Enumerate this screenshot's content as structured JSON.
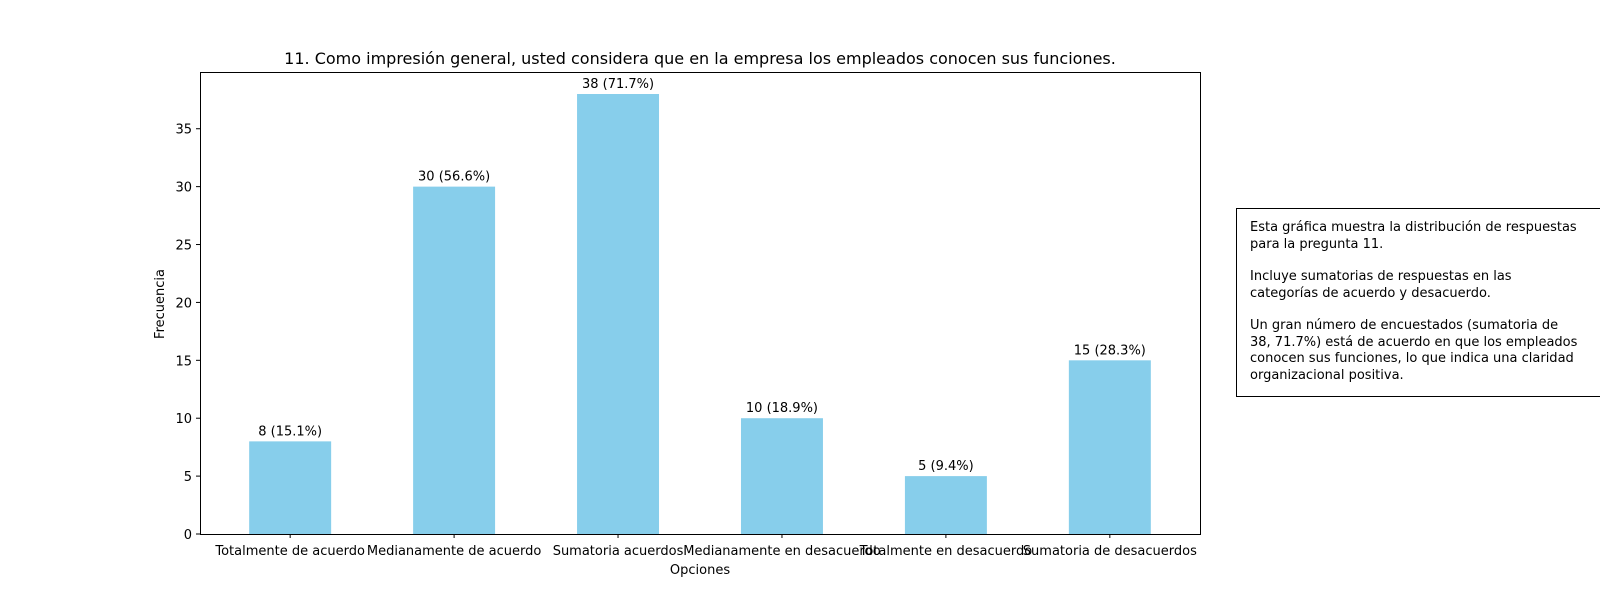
{
  "chart_data": {
    "type": "bar",
    "title": "11. Como impresión general, usted considera que en la empresa los empleados conocen sus funciones.",
    "xlabel": "Opciones",
    "ylabel": "Frecuencia",
    "categories": [
      "Totalmente de acuerdo",
      "Medianamente de acuerdo",
      "Sumatoria acuerdos",
      "Medianamente en desacuerdo",
      "Totalmente en desacuerdo",
      "Sumatoria de desacuerdos"
    ],
    "values": [
      8,
      30,
      38,
      10,
      5,
      15
    ],
    "data_labels": [
      "8 (15.1%)",
      "30 (56.6%)",
      "38 (71.7%)",
      "10 (18.9%)",
      "5 (9.4%)",
      "15 (28.3%)"
    ],
    "ylim": [
      0,
      39.9
    ],
    "yticks": [
      0,
      5,
      10,
      15,
      20,
      25,
      30,
      35
    ],
    "grid": false,
    "bar_color": "#87CEEB"
  },
  "annotation": {
    "lines": [
      "Esta gráfica muestra la distribución de respuestas",
      "para la pregunta 11.",
      "",
      "Incluye sumatorias de respuestas en las",
      "categorías de acuerdo y desacuerdo.",
      "",
      "Un gran número de encuestados (sumatoria de",
      "38, 71.7%) está de acuerdo en que los empleados",
      "conocen sus funciones, lo que indica una claridad",
      "organizacional positiva."
    ]
  }
}
